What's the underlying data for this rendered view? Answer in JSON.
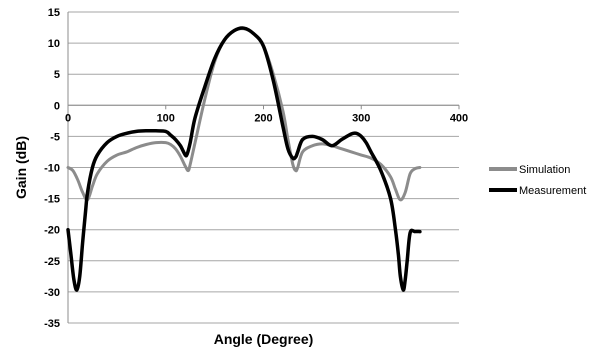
{
  "chart_data": {
    "type": "line",
    "xlabel": "Angle (Degree)",
    "ylabel": "Gain (dB)",
    "xlim": [
      0,
      400
    ],
    "ylim": [
      -35,
      15
    ],
    "xticks": [
      0,
      100,
      200,
      300,
      400
    ],
    "yticks": [
      15,
      10,
      5,
      0,
      -5,
      -10,
      -15,
      -20,
      -25,
      -30,
      -35
    ],
    "x_axis_crosses_at": 0,
    "grid": "horizontal",
    "legend_position": "right",
    "series": [
      {
        "name": "Simulation",
        "color": "#8c8c8c",
        "x": [
          0,
          5,
          10,
          15,
          20,
          25,
          30,
          40,
          50,
          60,
          70,
          80,
          90,
          100,
          105,
          110,
          115,
          120,
          123,
          125,
          130,
          140,
          150,
          160,
          170,
          180,
          190,
          200,
          210,
          220,
          225,
          230,
          233,
          235,
          240,
          250,
          260,
          270,
          280,
          290,
          300,
          310,
          320,
          330,
          335,
          340,
          345,
          350,
          355,
          360
        ],
        "y": [
          -10,
          -10.5,
          -12,
          -14,
          -15.2,
          -13,
          -11,
          -9,
          -8,
          -7.5,
          -6.8,
          -6.3,
          -6,
          -6,
          -6.3,
          -7,
          -8.2,
          -9.8,
          -10.5,
          -9.5,
          -6,
          1,
          7,
          10.5,
          12,
          12.3,
          11.5,
          9.5,
          5,
          -1,
          -5.5,
          -9.5,
          -10.5,
          -10,
          -7.5,
          -6.5,
          -6.2,
          -6.5,
          -7,
          -7.5,
          -8,
          -8.5,
          -9.5,
          -11.5,
          -13.5,
          -15.2,
          -14,
          -11,
          -10.2,
          -10
        ]
      },
      {
        "name": "Measurement",
        "color": "#000000",
        "x": [
          0,
          3,
          6,
          9,
          12,
          15,
          18,
          20,
          25,
          30,
          40,
          50,
          60,
          70,
          80,
          90,
          100,
          105,
          110,
          115,
          120,
          122,
          125,
          130,
          140,
          150,
          160,
          170,
          180,
          190,
          200,
          210,
          220,
          225,
          230,
          233,
          235,
          240,
          250,
          260,
          270,
          280,
          290,
          295,
          300,
          305,
          310,
          320,
          330,
          335,
          338,
          340,
          343,
          345,
          347,
          350,
          355,
          360
        ],
        "y": [
          -20,
          -24,
          -28,
          -29.7,
          -27.5,
          -22,
          -17,
          -14,
          -10,
          -8,
          -6,
          -5,
          -4.5,
          -4.2,
          -4.1,
          -4.1,
          -4.2,
          -4.8,
          -5.5,
          -6.5,
          -8,
          -7.8,
          -6,
          -2,
          3,
          7.5,
          10.5,
          12,
          12.4,
          11.5,
          9.5,
          4,
          -3.5,
          -7,
          -8.5,
          -8.3,
          -7.5,
          -5.5,
          -5,
          -5.5,
          -6.5,
          -5.5,
          -4.6,
          -4.5,
          -5,
          -6,
          -7.5,
          -10.5,
          -15,
          -20,
          -24,
          -27.5,
          -29.7,
          -28,
          -25,
          -20.5,
          -20.3,
          -20.3
        ]
      }
    ]
  }
}
